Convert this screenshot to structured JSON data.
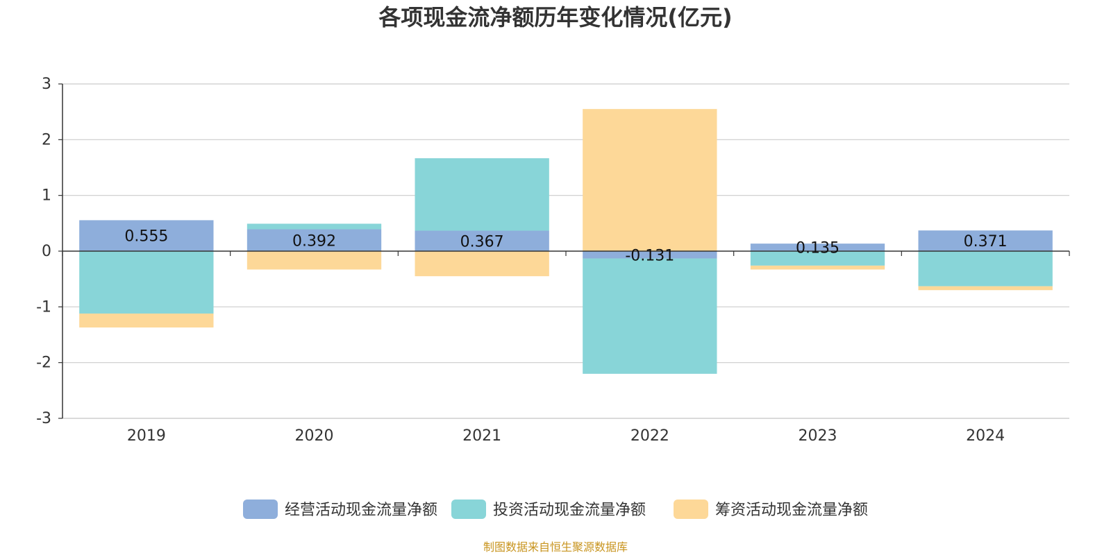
{
  "chart_data": {
    "type": "bar",
    "stacked": true,
    "title": "各项现金流净额历年变化情况(亿元)",
    "categories": [
      "2019",
      "2020",
      "2021",
      "2022",
      "2023",
      "2024"
    ],
    "ylim": [
      -3,
      3
    ],
    "yticks": [
      3,
      2,
      1,
      0,
      -1,
      -2,
      -3
    ],
    "grid": true,
    "legend_position": "bottom",
    "series": [
      {
        "name": "经营活动现金流量净额",
        "color": "#8eaedb",
        "values": [
          0.555,
          0.392,
          0.367,
          -0.131,
          0.135,
          0.371
        ],
        "labels": [
          "0.555",
          "0.392",
          "0.367",
          "-0.131",
          "0.135",
          "0.371"
        ]
      },
      {
        "name": "投资活动现金流量净额",
        "color": "#88d5d8",
        "values": [
          -1.12,
          0.1,
          1.3,
          -2.07,
          -0.26,
          -0.63
        ]
      },
      {
        "name": "筹资活动现金流量净额",
        "color": "#fdd898",
        "values": [
          -0.25,
          -0.33,
          -0.45,
          2.55,
          -0.07,
          -0.07
        ]
      }
    ]
  },
  "source": "制图数据来自恒生聚源数据库"
}
